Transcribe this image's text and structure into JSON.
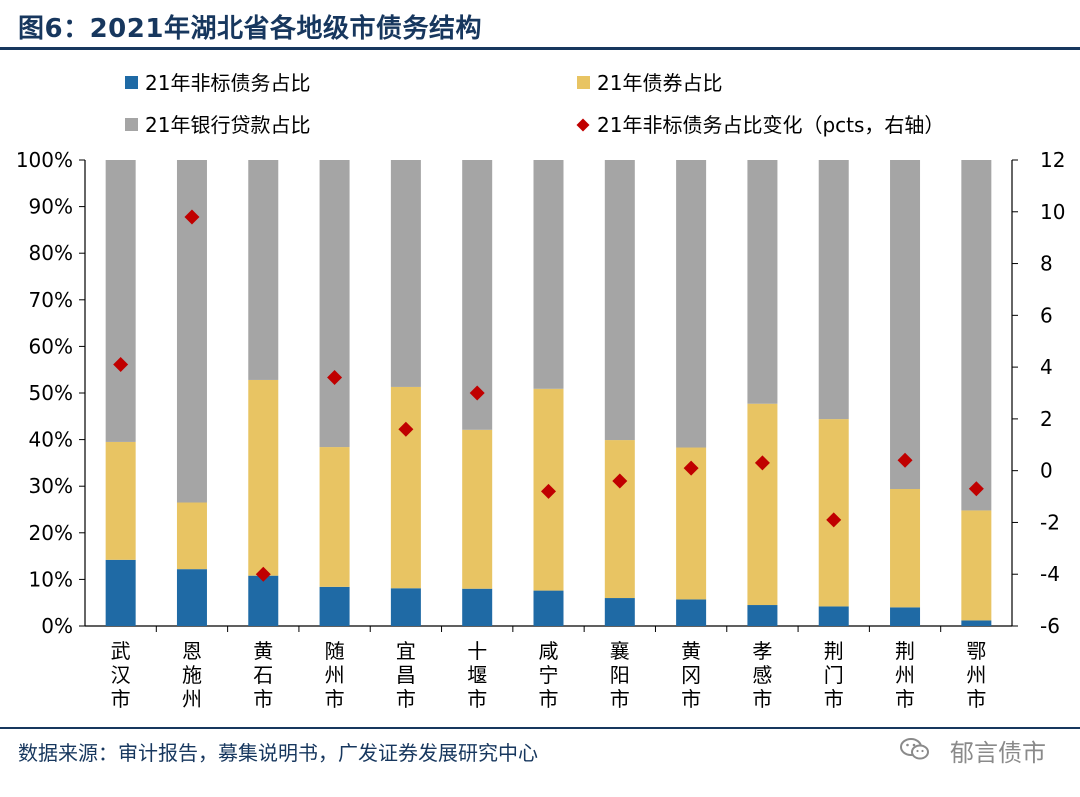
{
  "title": "图6：2021年湖北省各地级市债务结构",
  "source": "数据来源：审计报告，募集说明书，广发证券发展研究中心",
  "watermark": "郁言债市",
  "colors": {
    "nonstandard": "#1f6aa5",
    "bond": "#e8c463",
    "bank": "#a5a5a5",
    "change": "#c00000",
    "title": "#17375e"
  },
  "chart_data": {
    "type": "bar",
    "stacked": true,
    "categories": [
      "武汉市",
      "恩施州",
      "黄石市",
      "随州市",
      "宜昌市",
      "十堰市",
      "咸宁市",
      "襄阳市",
      "黄冈市",
      "孝感市",
      "荆门市",
      "荆州市",
      "鄂州市"
    ],
    "series": [
      {
        "name": "21年非标债务占比",
        "axis": "left",
        "kind": "bar",
        "values": [
          14.2,
          12.2,
          10.8,
          8.4,
          8.1,
          8.0,
          7.6,
          6.0,
          5.7,
          4.5,
          4.2,
          4.0,
          1.2
        ]
      },
      {
        "name": "21年债券占比",
        "axis": "left",
        "kind": "bar",
        "values": [
          25.3,
          14.3,
          42.0,
          30.0,
          43.2,
          34.1,
          43.3,
          33.9,
          32.6,
          43.2,
          40.2,
          25.4,
          23.6
        ]
      },
      {
        "name": "21年银行贷款占比",
        "axis": "left",
        "kind": "bar",
        "values": [
          60.5,
          73.5,
          47.2,
          61.6,
          48.7,
          57.9,
          49.1,
          60.1,
          61.7,
          52.3,
          55.6,
          70.6,
          75.2
        ]
      },
      {
        "name": "21年非标债务占比变化（pcts，右轴）",
        "axis": "right",
        "kind": "scatter",
        "values": [
          4.1,
          9.8,
          -4.0,
          3.6,
          1.6,
          3.0,
          -0.8,
          -0.4,
          0.1,
          0.3,
          -1.9,
          0.4,
          -0.7
        ]
      }
    ],
    "legend": [
      "21年非标债务占比",
      "21年债券占比",
      "21年银行贷款占比",
      "21年非标债务占比变化（pcts，右轴）"
    ],
    "left_axis": {
      "ylim": [
        0,
        100
      ],
      "ticks": [
        "0%",
        "10%",
        "20%",
        "30%",
        "40%",
        "50%",
        "60%",
        "70%",
        "80%",
        "90%",
        "100%"
      ]
    },
    "right_axis": {
      "ylim": [
        -6,
        12
      ],
      "ticks": [
        "-6",
        "-4",
        "-2",
        "0",
        "2",
        "4",
        "6",
        "8",
        "10",
        "12"
      ]
    },
    "legend_position": "top"
  }
}
